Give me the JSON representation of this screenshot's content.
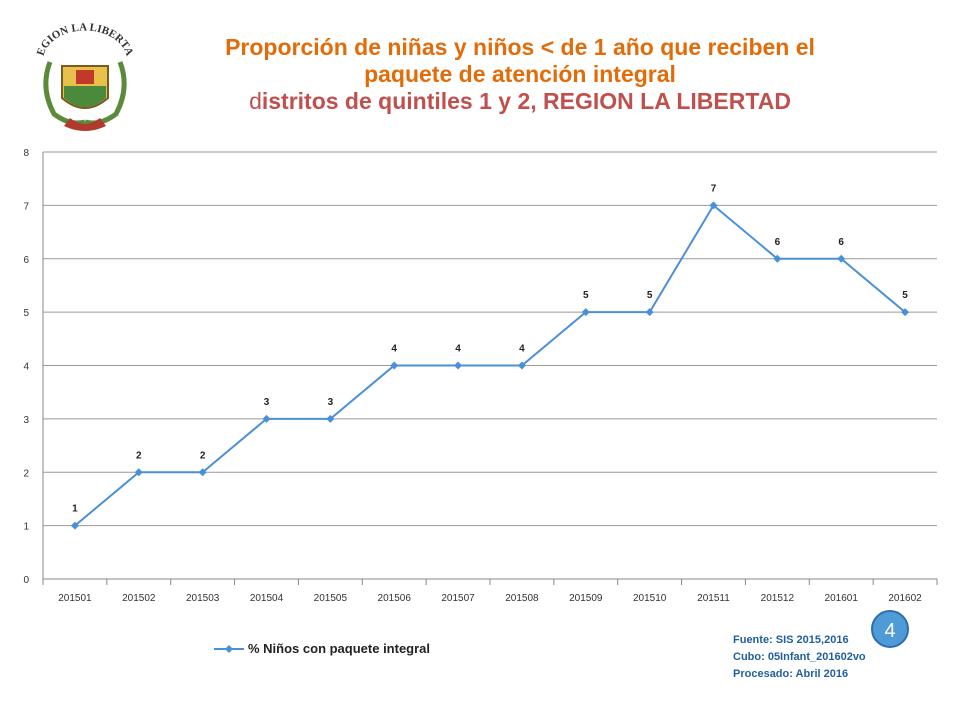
{
  "title": {
    "line1": "Proporción de niñas y niños < de 1 año que reciben el",
    "line2": "paquete de atención integral",
    "line3_first": "d",
    "line3_rest": "istritos de quintiles 1 y 2, REGION LA LIBERTAD"
  },
  "logo": {
    "text": "REGION LA LIBERTAD"
  },
  "chart_data": {
    "type": "line",
    "categories": [
      "201501",
      "201502",
      "201503",
      "201504",
      "201505",
      "201506",
      "201507",
      "201508",
      "201509",
      "201510",
      "201511",
      "201512",
      "201601",
      "201602"
    ],
    "series": [
      {
        "name": "% Niños con paquete integral",
        "values": [
          1,
          2,
          2,
          3,
          3,
          4,
          4,
          4,
          5,
          5,
          7,
          6,
          6,
          5
        ],
        "color": "#4A90D9"
      }
    ],
    "ylim": [
      0,
      8
    ],
    "yticks": [
      0,
      1,
      2,
      3,
      4,
      5,
      6,
      7,
      8
    ],
    "grid": true,
    "legend": "bottom-left"
  },
  "source": {
    "line1": "Fuente: SIS 2015,2016",
    "line2": "Cubo: 05Infant_201602vo",
    "line3": "Procesado:  Abril 2016"
  },
  "page_number": "4"
}
